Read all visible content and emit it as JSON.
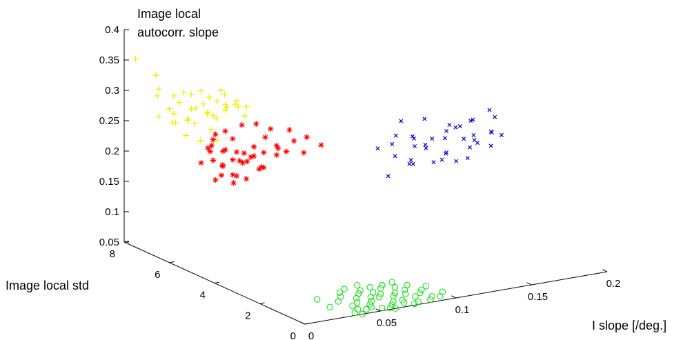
{
  "chart_data": {
    "type": "scatter",
    "dimensions": 3,
    "zlabel_lines": [
      "Image local",
      "autocorr. slope"
    ],
    "ylabel": "Image local std",
    "xlabel": "I slope [/deg.]",
    "xlim": [
      0,
      0.2
    ],
    "ylim": [
      0,
      8
    ],
    "zlim": [
      0.05,
      0.4
    ],
    "x_ticks": [
      "0",
      "0.05",
      "0.1",
      "0.15",
      "0.2"
    ],
    "y_ticks": [
      "0",
      "2",
      "4",
      "6",
      "8"
    ],
    "z_ticks": [
      "0.05",
      "0.1",
      "0.15",
      "0.2",
      "0.25",
      "0.3",
      "0.35",
      "0.4"
    ],
    "grid": false,
    "series": [
      {
        "color": "#00dd00",
        "marker": "circle",
        "points": [
          [
            0.036,
            0.2,
            0.05
          ],
          [
            0.041,
            0.4,
            0.05
          ],
          [
            0.045,
            0.3,
            0.05
          ],
          [
            0.05,
            0.4,
            0.05
          ],
          [
            0.054,
            0.2,
            0.05
          ],
          [
            0.058,
            0.1,
            0.05
          ],
          [
            0.062,
            0.3,
            0.05
          ],
          [
            0.066,
            0.5,
            0.05
          ],
          [
            0.07,
            0.3,
            0.05
          ],
          [
            0.074,
            0.1,
            0.05
          ],
          [
            0.078,
            0.2,
            0.05
          ],
          [
            0.082,
            0.6,
            0.05
          ],
          [
            0.086,
            0.2,
            0.05
          ],
          [
            0.09,
            0.4,
            0.05
          ],
          [
            0.094,
            0.3,
            0.05
          ],
          [
            0.042,
            0.7,
            0.05
          ],
          [
            0.048,
            0.9,
            0.05
          ],
          [
            0.056,
            0.8,
            0.05
          ],
          [
            0.064,
            1.0,
            0.05
          ],
          [
            0.072,
            0.9,
            0.05
          ],
          [
            0.08,
            0.9,
            0.05
          ],
          [
            0.088,
            0.8,
            0.05
          ],
          [
            0.03,
            0.9,
            0.05
          ],
          [
            0.06,
            1.1,
            0.05
          ],
          [
            0.068,
            1.2,
            0.05
          ],
          [
            0.076,
            1.1,
            0.05
          ],
          [
            0.084,
            1.2,
            0.05
          ],
          [
            0.092,
            1.0,
            0.05
          ],
          [
            0.04,
            1.2,
            0.05
          ],
          [
            0.052,
            1.2,
            0.05
          ],
          [
            0.046,
            1.5,
            0.05
          ],
          [
            0.058,
            1.5,
            0.05
          ],
          [
            0.066,
            1.4,
            0.05
          ],
          [
            0.074,
            1.6,
            0.05
          ],
          [
            0.082,
            1.5,
            0.05
          ],
          [
            0.09,
            1.5,
            0.05
          ],
          [
            0.032,
            1.6,
            0.05
          ],
          [
            0.07,
            1.8,
            0.05
          ],
          [
            0.05,
            1.8,
            0.05
          ],
          [
            0.062,
            1.7,
            0.05
          ],
          [
            0.078,
            1.8,
            0.05
          ],
          [
            0.086,
            1.9,
            0.05
          ],
          [
            0.056,
            2.0,
            0.05
          ],
          [
            0.066,
            2.1,
            0.05
          ],
          [
            0.1,
            0.6,
            0.05
          ],
          [
            0.098,
            1.2,
            0.05
          ],
          [
            0.072,
            0.5,
            0.05
          ],
          [
            0.038,
            0.0,
            0.05
          ],
          [
            0.06,
            0.0,
            0.05
          ],
          [
            0.052,
            0.6,
            0.05
          ]
        ]
      },
      {
        "color": "#0000cc",
        "marker": "x",
        "points": [
          [
            0.1,
            3.0,
            0.2
          ],
          [
            0.11,
            3.5,
            0.24
          ],
          [
            0.115,
            3.0,
            0.22
          ],
          [
            0.12,
            3.2,
            0.25
          ],
          [
            0.125,
            3.5,
            0.23
          ],
          [
            0.13,
            3.0,
            0.21
          ],
          [
            0.135,
            3.4,
            0.24
          ],
          [
            0.14,
            3.1,
            0.22
          ],
          [
            0.145,
            3.3,
            0.26
          ],
          [
            0.15,
            3.0,
            0.24
          ],
          [
            0.155,
            3.5,
            0.25
          ],
          [
            0.16,
            3.2,
            0.23
          ],
          [
            0.165,
            3.4,
            0.22
          ],
          [
            0.17,
            3.1,
            0.24
          ],
          [
            0.175,
            3.3,
            0.26
          ],
          [
            0.105,
            3.8,
            0.23
          ],
          [
            0.118,
            3.9,
            0.21
          ],
          [
            0.128,
            3.8,
            0.24
          ],
          [
            0.138,
            3.9,
            0.22
          ],
          [
            0.148,
            3.7,
            0.23
          ],
          [
            0.158,
            3.9,
            0.24
          ],
          [
            0.168,
            3.8,
            0.25
          ],
          [
            0.112,
            2.7,
            0.22
          ],
          [
            0.122,
            2.8,
            0.24
          ],
          [
            0.132,
            2.6,
            0.23
          ],
          [
            0.142,
            2.8,
            0.21
          ],
          [
            0.152,
            2.7,
            0.25
          ],
          [
            0.162,
            2.6,
            0.23
          ],
          [
            0.172,
            2.8,
            0.24
          ],
          [
            0.108,
            3.2,
            0.26
          ],
          [
            0.133,
            3.6,
            0.27
          ],
          [
            0.153,
            2.9,
            0.27
          ],
          [
            0.163,
            3.6,
            0.21
          ],
          [
            0.143,
            3.5,
            0.2
          ],
          [
            0.123,
            3.6,
            0.2
          ],
          [
            0.113,
            3.3,
            0.28
          ],
          [
            0.167,
            3.0,
            0.28
          ],
          [
            0.177,
            3.6,
            0.23
          ],
          [
            0.137,
            2.9,
            0.26
          ],
          [
            0.157,
            3.3,
            0.2
          ]
        ]
      },
      {
        "color": "#ff0000",
        "marker": "asterisk",
        "points": [
          [
            0.02,
            5.4,
            0.22
          ],
          [
            0.022,
            5.6,
            0.24
          ],
          [
            0.025,
            5.3,
            0.21
          ],
          [
            0.028,
            5.5,
            0.23
          ],
          [
            0.03,
            5.2,
            0.22
          ],
          [
            0.033,
            5.4,
            0.25
          ],
          [
            0.036,
            5.1,
            0.23
          ],
          [
            0.038,
            5.3,
            0.21
          ],
          [
            0.041,
            5.0,
            0.24
          ],
          [
            0.044,
            5.2,
            0.22
          ],
          [
            0.046,
            4.9,
            0.23
          ],
          [
            0.05,
            5.1,
            0.25
          ],
          [
            0.053,
            4.8,
            0.24
          ],
          [
            0.056,
            5.0,
            0.22
          ],
          [
            0.058,
            4.7,
            0.23
          ],
          [
            0.018,
            5.8,
            0.21
          ],
          [
            0.024,
            5.9,
            0.23
          ],
          [
            0.032,
            5.8,
            0.2
          ],
          [
            0.04,
            5.7,
            0.22
          ],
          [
            0.048,
            5.6,
            0.21
          ],
          [
            0.015,
            5.2,
            0.24
          ],
          [
            0.027,
            5.0,
            0.2
          ],
          [
            0.035,
            4.9,
            0.22
          ],
          [
            0.043,
            4.7,
            0.21
          ],
          [
            0.051,
            4.6,
            0.24
          ],
          [
            0.06,
            4.5,
            0.25
          ],
          [
            0.065,
            4.4,
            0.23
          ],
          [
            0.023,
            5.5,
            0.26
          ],
          [
            0.031,
            5.6,
            0.26
          ],
          [
            0.039,
            5.4,
            0.27
          ],
          [
            0.047,
            5.3,
            0.27
          ],
          [
            0.055,
            5.2,
            0.26
          ],
          [
            0.063,
            4.9,
            0.26
          ],
          [
            0.07,
            4.6,
            0.25
          ],
          [
            0.075,
            4.3,
            0.24
          ],
          [
            0.029,
            6.0,
            0.24
          ],
          [
            0.037,
            6.0,
            0.22
          ],
          [
            0.045,
            5.9,
            0.2
          ],
          [
            0.021,
            5.1,
            0.2
          ],
          [
            0.052,
            5.5,
            0.19
          ],
          [
            0.034,
            5.3,
            0.19
          ],
          [
            0.042,
            5.4,
            0.18
          ],
          [
            0.026,
            5.7,
            0.18
          ],
          [
            0.038,
            5.7,
            0.17
          ],
          [
            0.049,
            5.2,
            0.2
          ]
        ]
      },
      {
        "color": "#eeee00",
        "marker": "plus",
        "points": [
          [
            0.005,
            6.8,
            0.32
          ],
          [
            0.01,
            7.2,
            0.3
          ],
          [
            0.015,
            7.0,
            0.28
          ],
          [
            0.02,
            6.9,
            0.29
          ],
          [
            0.025,
            6.7,
            0.28
          ],
          [
            0.03,
            6.5,
            0.29
          ],
          [
            0.035,
            6.4,
            0.27
          ],
          [
            0.04,
            6.2,
            0.28
          ],
          [
            0.045,
            6.1,
            0.29
          ],
          [
            0.05,
            6.0,
            0.27
          ],
          [
            0.012,
            6.6,
            0.28
          ],
          [
            0.018,
            6.4,
            0.27
          ],
          [
            0.022,
            6.3,
            0.29
          ],
          [
            0.028,
            6.2,
            0.28
          ],
          [
            0.033,
            6.1,
            0.3
          ],
          [
            0.038,
            6.0,
            0.29
          ],
          [
            0.043,
            5.9,
            0.3
          ],
          [
            0.048,
            5.8,
            0.29
          ],
          [
            0.008,
            7.0,
            0.27
          ],
          [
            0.016,
            6.8,
            0.26
          ],
          [
            0.024,
            6.5,
            0.26
          ],
          [
            0.032,
            6.3,
            0.25
          ],
          [
            0.04,
            6.4,
            0.31
          ],
          [
            0.03,
            6.6,
            0.31
          ],
          [
            0.02,
            6.7,
            0.31
          ],
          [
            0.036,
            6.7,
            0.27
          ],
          [
            0.026,
            6.9,
            0.26
          ],
          [
            0.044,
            6.5,
            0.3
          ],
          [
            0.014,
            6.2,
            0.25
          ],
          [
            0.022,
            6.1,
            0.24
          ],
          [
            0.03,
            5.9,
            0.24
          ],
          [
            0.012,
            7.4,
            0.33
          ],
          [
            0.0,
            7.5,
            0.36
          ],
          [
            0.05,
            6.3,
            0.28
          ],
          [
            0.046,
            6.6,
            0.28
          ],
          [
            0.018,
            7.0,
            0.3
          ],
          [
            0.028,
            6.9,
            0.3
          ],
          [
            0.034,
            6.2,
            0.27
          ],
          [
            0.04,
            6.9,
            0.29
          ],
          [
            0.008,
            6.4,
            0.27
          ]
        ]
      }
    ]
  }
}
